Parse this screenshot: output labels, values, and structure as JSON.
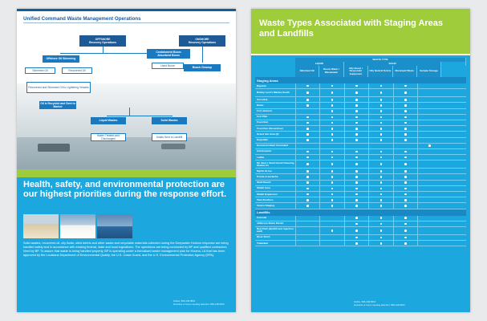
{
  "left_page": {
    "flow_title": "Unified Command Waste Management Operations",
    "offshore": "OFFSHORE\nRecovery Operations",
    "onshore": "ONSHORE\nRecovery Operations",
    "containment": "Containment Boom\nAbsorbent Boom",
    "oil_skimming": "Offshore Oil Skimming",
    "skimmed_oil": "Skimmed Oil",
    "recovered_oil": "Recovered Oil",
    "used_boom": "Used Boom",
    "beach_cleanup": "Beach Cleanup",
    "transfer": "Recovered and Skimmed Oil to Lightering Vessels",
    "decontam": "Oil is Recycled and Sent to Market",
    "liquid_wastes": "Liquid Wastes",
    "solid_wastes": "Solid Wastes",
    "water_treated": "Water Treated and Discharged",
    "solids_landfill": "Solids Sent to Landfill",
    "headline": "Health, safety, and environmental protection are our highest priorities during the response effort.",
    "body": "Solid wastes, recovered oil, oily fluids, oiled debris and other waste and recyclable materials collected during the Deepwater Horizon response are being handled safely and in accordance with existing federal, state and local regulations. The operations are being conducted by BP and qualified contractors hired by BP. To assure that waste is being handled properly, BP is operating under a formalized waste management plan for Houma, LA that has been approved by the Louisiana Department of Environmental Quality, the U.S. Coast Guard, and the U.S. Environmental Protection Agency (EPA).",
    "footer": "hotline: 866-448-5816\nshoreline or boom needing attention: 866-448-5816"
  },
  "right_page": {
    "title": "Waste Types Associated with Staging Areas and Landfills",
    "group_header": "WASTE TYPE",
    "liquid_header": "LIQUID",
    "solid_header": "SOLID",
    "columns": [
      "Skimmed Oil",
      "Decon Water / Wastewater",
      "Oily Boom / Responder Equipment",
      "Oily Natural Debris",
      "Municipal Waste",
      "Sample Storage"
    ],
    "section_staging": "Staging Areas",
    "staging_rows": [
      {
        "label": "Bayside",
        "marks": [
          1,
          1,
          1,
          1,
          1,
          0
        ]
      },
      {
        "label": "Bobby Lynn's Marina South",
        "marks": [
          1,
          1,
          1,
          1,
          1,
          0
        ]
      },
      {
        "label": "Cocodrie",
        "marks": [
          1,
          1,
          1,
          1,
          1,
          0
        ]
      },
      {
        "label": "Dulac",
        "marks": [
          1,
          1,
          1,
          1,
          1,
          0
        ]
      },
      {
        "label": "Fort Jackson",
        "marks": [
          0,
          1,
          1,
          1,
          1,
          0
        ]
      },
      {
        "label": "Fort Pike",
        "marks": [
          1,
          1,
          1,
          1,
          1,
          0
        ]
      },
      {
        "label": "Fourchon",
        "marks": [
          1,
          1,
          1,
          1,
          1,
          0
        ]
      },
      {
        "label": "Fourchon (Snowshoe)",
        "marks": [
          1,
          1,
          1,
          1,
          1,
          0
        ]
      },
      {
        "label": "Grand Isle Area (4)",
        "marks": [
          1,
          1,
          1,
          1,
          1,
          0
        ]
      },
      {
        "label": "Hopedale",
        "marks": [
          1,
          1,
          1,
          1,
          1,
          0
        ]
      },
      {
        "label": "Houma Incident Command",
        "marks": [
          0,
          0,
          0,
          0,
          0,
          1
        ]
      },
      {
        "label": "IntraCoastal",
        "marks": [
          1,
          1,
          1,
          1,
          1,
          0
        ]
      },
      {
        "label": "Lafitte",
        "marks": [
          1,
          1,
          1,
          1,
          1,
          0
        ]
      },
      {
        "label": "Mr. Sam’s Sand Island Cleaning Station #1",
        "marks": [
          1,
          1,
          1,
          1,
          1,
          0
        ]
      },
      {
        "label": "Myrtle Grove",
        "marks": [
          1,
          1,
          1,
          1,
          1,
          0
        ]
      },
      {
        "label": "Pointe-A-la-Hache",
        "marks": [
          1,
          1,
          1,
          1,
          1,
          0
        ]
      },
      {
        "label": "Shell Beach",
        "marks": [
          1,
          1,
          1,
          1,
          1,
          0
        ]
      },
      {
        "label": "Slidell Area",
        "marks": [
          1,
          1,
          1,
          1,
          1,
          0
        ]
      },
      {
        "label": "Slidell Expansion",
        "marks": [
          1,
          1,
          1,
          1,
          1,
          0
        ]
      },
      {
        "label": "Twin Brothers",
        "marks": [
          1,
          1,
          1,
          1,
          1,
          0
        ]
      },
      {
        "label": "Venice Staging",
        "marks": [
          1,
          1,
          1,
          1,
          1,
          0
        ]
      }
    ],
    "section_landfills": "Landfills",
    "landfill_rows": [
      {
        "label": "Colonial",
        "marks": [
          0,
          0,
          1,
          1,
          1,
          0
        ]
      },
      {
        "label": "Jefferson Davis Parish",
        "marks": [
          0,
          0,
          1,
          1,
          1,
          0
        ]
      },
      {
        "label": "New Park (landfill and injection well)",
        "marks": [
          0,
          1,
          1,
          1,
          1,
          0
        ]
      },
      {
        "label": "River Birch",
        "marks": [
          0,
          0,
          1,
          1,
          1,
          0
        ]
      },
      {
        "label": "Tidewater",
        "marks": [
          0,
          0,
          1,
          1,
          1,
          0
        ]
      }
    ],
    "footer": "hotline: 866-448-5816\nshoreline or boom needing attention: 866-448-5816"
  }
}
